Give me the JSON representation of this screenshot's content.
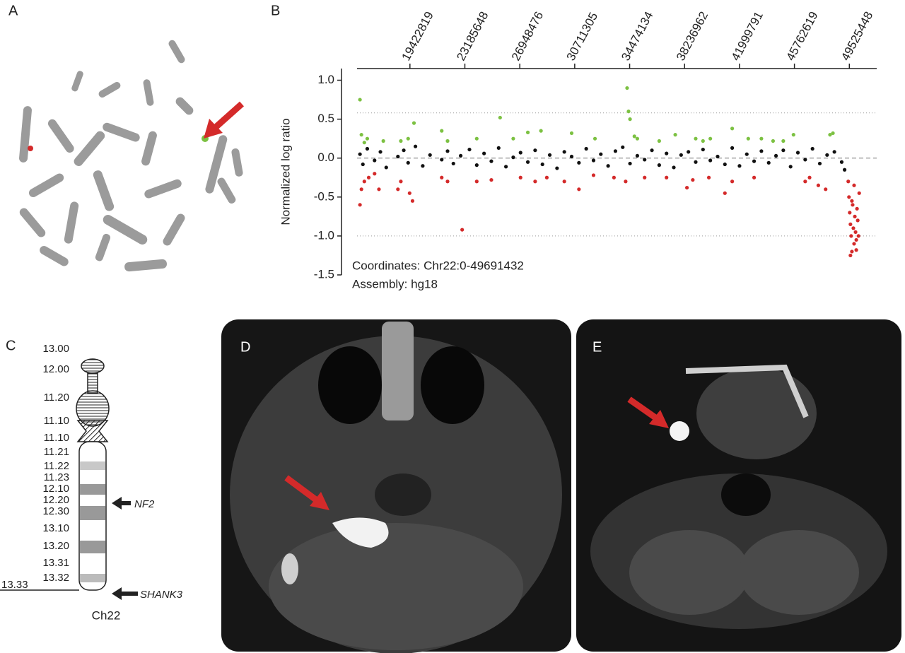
{
  "panel_labels": [
    "A",
    "B",
    "C",
    "D",
    "E"
  ],
  "chart_data": {
    "type": "scatter",
    "y_label": "Normalized log ratio",
    "xlim": [
      15800000,
      51400000
    ],
    "ylim": [
      -1.5,
      1.15
    ],
    "xticks": [
      19422819,
      23185648,
      26948476,
      30711305,
      34474134,
      38236962,
      41999791,
      45762619,
      49525448
    ],
    "yticks": [
      {
        "value": 1,
        "label": "1.0"
      },
      0.5,
      {
        "value": 0,
        "label": "0.0"
      },
      -0.5,
      {
        "value": -1,
        "label": "-1.0"
      },
      -1.5
    ],
    "reference_lines": [
      0.58,
      0,
      -1
    ],
    "annotations": [
      "Coordinates: Chr22:0-49691432",
      "Assembly: hg18"
    ],
    "series": [
      {
        "color": "#111111",
        "x": [
          16000000,
          16200000,
          16500000,
          17000000,
          17400000,
          17800000,
          18600000,
          19000000,
          19300000,
          19800000,
          20300000,
          20800000,
          21600000,
          22000000,
          22400000,
          22900000,
          23500000,
          24000000,
          24500000,
          25000000,
          25500000,
          26000000,
          26500000,
          27000000,
          27500000,
          28000000,
          28500000,
          29000000,
          29500000,
          30000000,
          30500000,
          31000000,
          31500000,
          32000000,
          32500000,
          33000000,
          33500000,
          34000000,
          34500000,
          35000000,
          35500000,
          36000000,
          36500000,
          37000000,
          37500000,
          38000000,
          38500000,
          39000000,
          39500000,
          40000000,
          40500000,
          41000000,
          41500000,
          42000000,
          42500000,
          43000000,
          43500000,
          44000000,
          44500000,
          45000000,
          45500000,
          46000000,
          46500000,
          47000000,
          47500000,
          48000000,
          48500000,
          49000000,
          49200000
        ],
        "values": [
          0.05,
          -0.08,
          0.12,
          -0.03,
          0.08,
          -0.12,
          0.02,
          0.1,
          -0.06,
          0.15,
          -0.1,
          0.04,
          -0.02,
          0.09,
          -0.07,
          0.03,
          0.11,
          -0.09,
          0.06,
          -0.04,
          0.13,
          -0.11,
          0.01,
          0.07,
          -0.05,
          0.1,
          -0.08,
          0.04,
          -0.13,
          0.08,
          0.02,
          -0.06,
          0.12,
          -0.03,
          0.05,
          -0.1,
          0.09,
          0.14,
          -0.07,
          0.03,
          -0.02,
          0.1,
          -0.09,
          0.06,
          -0.12,
          0.04,
          0.08,
          -0.05,
          0.11,
          -0.03,
          0.02,
          -0.08,
          0.13,
          -0.1,
          0.05,
          -0.04,
          0.09,
          -0.06,
          0.03,
          0.1,
          -0.11,
          0.07,
          -0.02,
          0.12,
          -0.07,
          0.04,
          0.08,
          -0.05,
          -0.15
        ]
      },
      {
        "color": "#7cc142",
        "x": [
          16000000,
          16100000,
          16300000,
          16500000,
          17600000,
          18800000,
          19300000,
          19700000,
          21600000,
          22000000,
          24000000,
          25600000,
          26500000,
          27500000,
          28400000,
          30500000,
          32100000,
          34300000,
          34400000,
          34500000,
          34800000,
          35000000,
          36500000,
          37600000,
          39000000,
          39500000,
          40000000,
          41500000,
          42600000,
          43500000,
          44300000,
          45000000,
          45700000,
          48200000,
          48400000
        ],
        "values": [
          0.75,
          0.3,
          0.2,
          0.25,
          0.22,
          0.22,
          0.25,
          0.45,
          0.35,
          0.22,
          0.25,
          0.52,
          0.25,
          0.33,
          0.35,
          0.32,
          0.25,
          0.9,
          0.6,
          0.5,
          0.28,
          0.25,
          0.22,
          0.3,
          0.25,
          0.22,
          0.25,
          0.38,
          0.25,
          0.25,
          0.22,
          0.22,
          0.3,
          0.3,
          0.32
        ]
      },
      {
        "color": "#d42a2a",
        "x": [
          16000000,
          16100000,
          16300000,
          16600000,
          17000000,
          17300000,
          18600000,
          18800000,
          19400000,
          19600000,
          21600000,
          22000000,
          23000000,
          24000000,
          25000000,
          27000000,
          28000000,
          28800000,
          30000000,
          31000000,
          32000000,
          33400000,
          34200000,
          35500000,
          37000000,
          38400000,
          38800000,
          39900000,
          41000000,
          41500000,
          43000000,
          46500000,
          46800000,
          47400000,
          47900000,
          49450000,
          49500000,
          49550000,
          49600000,
          49650000,
          49700000,
          49750000,
          49800000,
          49850000,
          49900000,
          49950000,
          50000000,
          50050000,
          50100000,
          50150000,
          50200000,
          49600000,
          49850000,
          50000000,
          49700000
        ],
        "values": [
          -0.6,
          -0.4,
          -0.3,
          -0.25,
          -0.2,
          -0.4,
          -0.4,
          -0.3,
          -0.45,
          -0.55,
          -0.25,
          -0.3,
          -0.92,
          -0.3,
          -0.28,
          -0.25,
          -0.3,
          -0.25,
          -0.3,
          -0.4,
          -0.22,
          -0.25,
          -0.3,
          -0.25,
          -0.25,
          -0.38,
          -0.28,
          -0.25,
          -0.45,
          -0.3,
          -0.25,
          -0.3,
          -0.25,
          -0.35,
          -0.4,
          -0.3,
          -0.5,
          -0.7,
          -0.85,
          -1.0,
          -1.2,
          -0.6,
          -0.9,
          -1.1,
          -0.75,
          -0.95,
          -1.05,
          -0.65,
          -0.8,
          -1.0,
          -0.45,
          -1.25,
          -0.35,
          -1.18,
          -0.55
        ]
      }
    ]
  },
  "ideogram": {
    "bands": [
      "13.00",
      "12.00",
      "11.20",
      "11.10",
      "11.10",
      "11.21",
      "11.22",
      "11.23",
      "12.10",
      "12.20",
      "12.30",
      "13.10",
      "13.20",
      "13.31",
      "13.32",
      "13.33"
    ],
    "markers": [
      "NF2",
      "SHANK3"
    ],
    "name": "Ch22"
  }
}
